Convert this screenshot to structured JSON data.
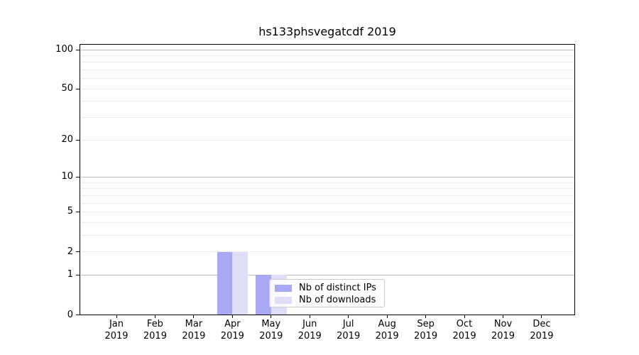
{
  "title": "hs133phsvegatcdf 2019",
  "chart_data": {
    "type": "bar",
    "title": "hs133phsvegatcdf 2019",
    "categories": [
      "Jan",
      "Feb",
      "Mar",
      "Apr",
      "May",
      "Jun",
      "Jul",
      "Aug",
      "Sep",
      "Oct",
      "Nov",
      "Dec"
    ],
    "x_tick_year": "2019",
    "series": [
      {
        "name": "Nb of distinct IPs",
        "color": "#a9a9f3",
        "values": [
          0,
          0,
          0,
          2,
          1,
          0,
          0,
          0,
          0,
          0,
          0,
          0
        ]
      },
      {
        "name": "Nb of downloads",
        "color": "#dedef8",
        "values": [
          0,
          0,
          0,
          2,
          1,
          0,
          0,
          0,
          0,
          0,
          0,
          0
        ]
      }
    ],
    "y_scale": "log1p",
    "y_max": 100,
    "ylim": [
      0,
      100
    ],
    "y_tick_labels": [
      0,
      1,
      2,
      5,
      10,
      20,
      50,
      100
    ],
    "y_major_gridlines": [
      1,
      10,
      100
    ],
    "y_minor_gridlines": [
      2,
      3,
      4,
      5,
      6,
      7,
      8,
      9,
      20,
      30,
      40,
      50,
      60,
      70,
      80,
      90
    ],
    "grid": "on",
    "legend_position": "lower center-right inside plot",
    "colors": {
      "background": "#ffffff",
      "spine": "#000000",
      "grid_major": "#bdbdbd",
      "grid_minor": "#ececec",
      "text": "#000000"
    }
  }
}
